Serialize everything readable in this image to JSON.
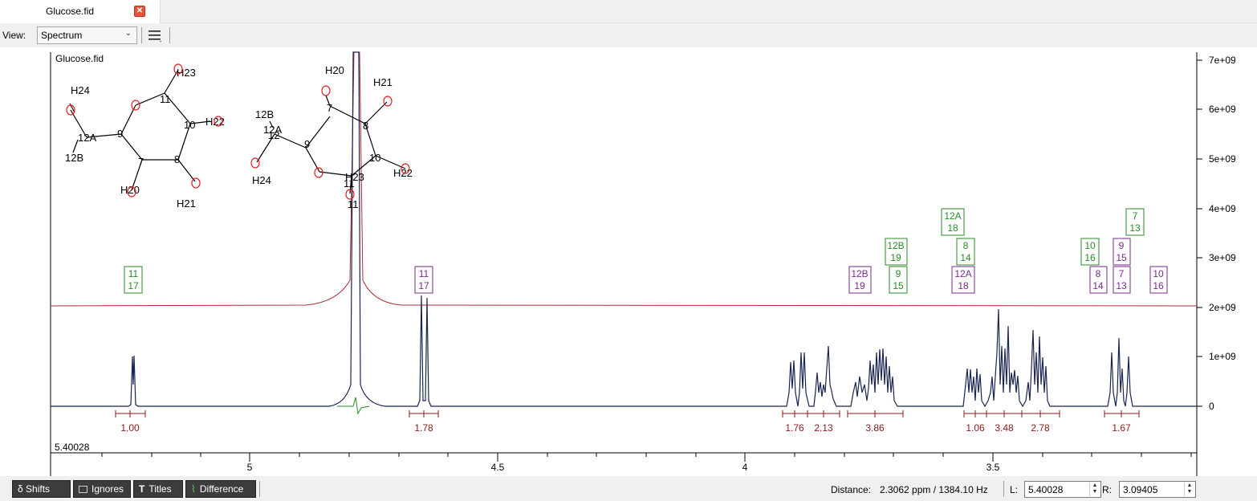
{
  "tab": {
    "title": "Glucose.fid",
    "close_icon": "close-icon"
  },
  "toolbar": {
    "view_label": "View:",
    "view_value": "Spectrum",
    "menu_icon": "hamburger-menu-icon"
  },
  "plot": {
    "filename": "Glucose.fid",
    "cursor_value": "5.40028",
    "x_ticks": [
      "5",
      "4.5",
      "4",
      "3.5"
    ],
    "y_ticks": [
      "7e+09",
      "6e+09",
      "5e+09",
      "4e+09",
      "3e+09",
      "2e+09",
      "1e+09",
      "0"
    ],
    "molecule1_labels": [
      "H24",
      "H23",
      "11",
      "10",
      "H22",
      "12A",
      "12B",
      "9",
      "7",
      "8",
      "H20",
      "H21"
    ],
    "molecule2_labels": [
      "H20",
      "H21",
      "12B",
      "12A",
      "12",
      "7",
      "8",
      "9",
      "10",
      "H23",
      "H22",
      "H24",
      "11",
      "11"
    ],
    "green_labels": [
      [
        "11",
        "17"
      ],
      [
        "12B",
        "19"
      ],
      [
        "9",
        "15"
      ],
      [
        "12A",
        "18"
      ],
      [
        "8",
        "14"
      ],
      [
        "10",
        "16"
      ],
      [
        "7",
        "13"
      ]
    ],
    "purple_labels": [
      [
        "11",
        "17"
      ],
      [
        "12B",
        "19"
      ],
      [
        "12A",
        "18"
      ],
      [
        "8",
        "14"
      ],
      [
        "9",
        "15"
      ],
      [
        "7",
        "13"
      ],
      [
        "10",
        "16"
      ]
    ],
    "integrals": [
      "1.00",
      "1.78",
      "1.76",
      "2.13",
      "3.86",
      "1.06",
      "3.48",
      "2.78",
      "1.67"
    ],
    "colors": {
      "spectrum": "#1a2550",
      "overlay": "#b02b37",
      "green": "#2a8a2a",
      "purple": "#7a2a8a",
      "integral": "#8b1a1a"
    }
  },
  "bottom": {
    "shifts_label": "δ Shifts",
    "ignores_label": "Ignores",
    "titles_label": "Titles",
    "difference_label": "Difference",
    "distance_label": "Distance:",
    "distance_value": "2.3062 ppm / 1384.10 Hz",
    "l_label": "L:",
    "l_value": "5.40028",
    "r_label": "R:",
    "r_value": "3.09405"
  }
}
